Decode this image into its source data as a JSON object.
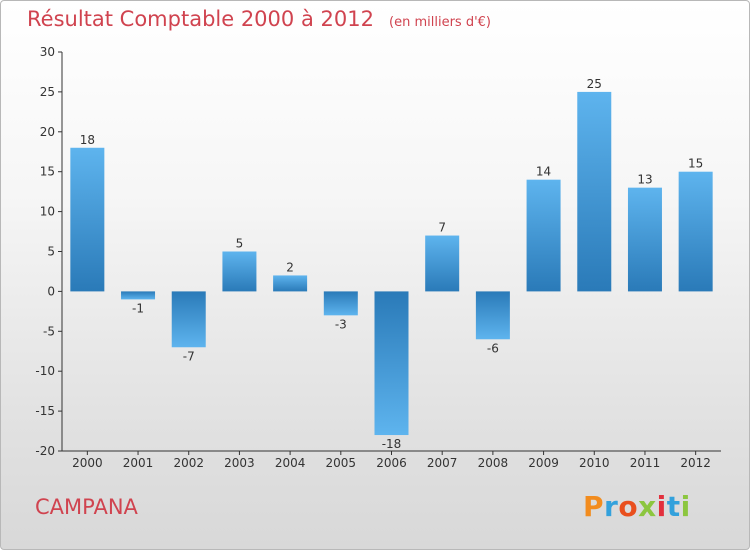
{
  "title": "Résultat Comptable 2000 à 2012",
  "unit": "(en milliers d'€)",
  "commune": "CAMPANA",
  "logo": {
    "text": "Proxiti",
    "colors": [
      "#f28c1e",
      "#33a1dc",
      "#e94f1d",
      "#8cc63f",
      "#e2303d",
      "#33a1dc",
      "#8cc63f"
    ]
  },
  "colors": {
    "title": "#d0434f",
    "bar_light": "#5eb4ee",
    "bar_dark": "#2a7ab8",
    "text": "#333333"
  },
  "chart_data": {
    "type": "bar",
    "title": "Résultat Comptable 2000 à 2012",
    "subtitle": "(en milliers d'€)",
    "categories": [
      "2000",
      "2001",
      "2002",
      "2003",
      "2004",
      "2005",
      "2006",
      "2007",
      "2008",
      "2009",
      "2010",
      "2011",
      "2012"
    ],
    "values": [
      18,
      -1,
      -7,
      5,
      2,
      -3,
      -18,
      7,
      -6,
      14,
      25,
      13,
      15
    ],
    "data_labels": [
      "18",
      "-1",
      "-7",
      "5",
      "2",
      "-3",
      "-18",
      "7",
      "-6",
      "14",
      "25",
      "13",
      "15"
    ],
    "ylim": [
      -20,
      30
    ],
    "yticks": [
      -20,
      -15,
      -10,
      -5,
      0,
      5,
      10,
      15,
      20,
      25,
      30
    ],
    "ytick_labels": [
      "-20",
      "-15",
      "-10",
      "-5",
      "0",
      "5",
      "10",
      "15",
      "20",
      "25",
      "30"
    ],
    "grid": false,
    "legend": "none"
  }
}
